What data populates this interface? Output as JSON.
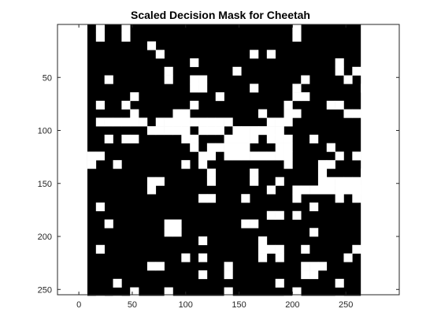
{
  "chart_data": {
    "type": "heatmap",
    "title": "Scaled Decision Mask for Cheetah",
    "xlabel": "",
    "ylabel": "",
    "xlim": [
      -20,
      300
    ],
    "ylim": [
      0,
      255
    ],
    "y_reversed": true,
    "xticks": [
      0,
      50,
      100,
      150,
      200,
      250
    ],
    "yticks": [
      50,
      100,
      150,
      200,
      250
    ],
    "grid": false,
    "colormap": [
      "#000000",
      "#ffffff"
    ],
    "cell_size": 8,
    "mask_col_range": [
      8,
      264
    ],
    "mask_row_range": [
      0,
      256
    ],
    "fill_outside": 1,
    "white_cells": [
      [
        0,
        1
      ],
      [
        0,
        4
      ],
      [
        0,
        24
      ],
      [
        1,
        1
      ],
      [
        1,
        4
      ],
      [
        1,
        24
      ],
      [
        2,
        7
      ],
      [
        3,
        8
      ],
      [
        3,
        19
      ],
      [
        3,
        21
      ],
      [
        3,
        34
      ],
      [
        4,
        12
      ],
      [
        4,
        29
      ],
      [
        4,
        36
      ],
      [
        5,
        9
      ],
      [
        5,
        17
      ],
      [
        5,
        29
      ],
      [
        5,
        31
      ],
      [
        5,
        35
      ],
      [
        6,
        2
      ],
      [
        6,
        9
      ],
      [
        6,
        12
      ],
      [
        6,
        13
      ],
      [
        6,
        25
      ],
      [
        6,
        30
      ],
      [
        7,
        12
      ],
      [
        7,
        13
      ],
      [
        7,
        19
      ],
      [
        7,
        24
      ],
      [
        7,
        32
      ],
      [
        7,
        33
      ],
      [
        8,
        5
      ],
      [
        8,
        15
      ],
      [
        8,
        24
      ],
      [
        8,
        25
      ],
      [
        8,
        33
      ],
      [
        9,
        1
      ],
      [
        9,
        4
      ],
      [
        9,
        12
      ],
      [
        9,
        23
      ],
      [
        9,
        28
      ],
      [
        9,
        29
      ],
      [
        10,
        5
      ],
      [
        10,
        10
      ],
      [
        10,
        11
      ],
      [
        10,
        20
      ],
      [
        10,
        23
      ],
      [
        10,
        24
      ],
      [
        10,
        30
      ],
      [
        10,
        31
      ],
      [
        10,
        32
      ],
      [
        11,
        1
      ],
      [
        11,
        2
      ],
      [
        11,
        3
      ],
      [
        11,
        4
      ],
      [
        11,
        5
      ],
      [
        11,
        6
      ],
      [
        11,
        8
      ],
      [
        11,
        9
      ],
      [
        11,
        10
      ],
      [
        11,
        11
      ],
      [
        11,
        12
      ],
      [
        11,
        13
      ],
      [
        11,
        14
      ],
      [
        11,
        15
      ],
      [
        11,
        16
      ],
      [
        11,
        21
      ],
      [
        11,
        22
      ],
      [
        11,
        23
      ],
      [
        12,
        7
      ],
      [
        12,
        8
      ],
      [
        12,
        9
      ],
      [
        12,
        10
      ],
      [
        12,
        11
      ],
      [
        12,
        13
      ],
      [
        12,
        14
      ],
      [
        12,
        15
      ],
      [
        12,
        17
      ],
      [
        12,
        18
      ],
      [
        12,
        19
      ],
      [
        12,
        20
      ],
      [
        12,
        21
      ],
      [
        12,
        22
      ],
      [
        13,
        2
      ],
      [
        13,
        4
      ],
      [
        13,
        5
      ],
      [
        13,
        11
      ],
      [
        13,
        12
      ],
      [
        13,
        16
      ],
      [
        13,
        17
      ],
      [
        13,
        18
      ],
      [
        13,
        19
      ],
      [
        13,
        21
      ],
      [
        13,
        22
      ],
      [
        13,
        23
      ],
      [
        13,
        26
      ],
      [
        14,
        12
      ],
      [
        14,
        14
      ],
      [
        14,
        15
      ],
      [
        14,
        16
      ],
      [
        14,
        17
      ],
      [
        14,
        18
      ],
      [
        14,
        22
      ],
      [
        14,
        23
      ],
      [
        14,
        28
      ],
      [
        15,
        0
      ],
      [
        15,
        1
      ],
      [
        15,
        13
      ],
      [
        15,
        14
      ],
      [
        15,
        16
      ],
      [
        15,
        17
      ],
      [
        15,
        18
      ],
      [
        15,
        19
      ],
      [
        15,
        20
      ],
      [
        15,
        21
      ],
      [
        15,
        22
      ],
      [
        15,
        23
      ],
      [
        15,
        29
      ],
      [
        15,
        31
      ],
      [
        16,
        0
      ],
      [
        16,
        3
      ],
      [
        16,
        11
      ],
      [
        16,
        13
      ],
      [
        16,
        23
      ],
      [
        16,
        27
      ],
      [
        16,
        28
      ],
      [
        17,
        14
      ],
      [
        17,
        19
      ],
      [
        17,
        27
      ],
      [
        17,
        32
      ],
      [
        17,
        33
      ],
      [
        18,
        7
      ],
      [
        18,
        8
      ],
      [
        18,
        14
      ],
      [
        18,
        19
      ],
      [
        18,
        22
      ],
      [
        18,
        27
      ],
      [
        18,
        28
      ],
      [
        18,
        29
      ],
      [
        18,
        30
      ],
      [
        18,
        31
      ],
      [
        18,
        33
      ],
      [
        19,
        7
      ],
      [
        19,
        21
      ],
      [
        19,
        24
      ],
      [
        19,
        25
      ],
      [
        19,
        26
      ],
      [
        19,
        27
      ],
      [
        19,
        28
      ],
      [
        19,
        29
      ],
      [
        19,
        30
      ],
      [
        19,
        31
      ],
      [
        19,
        32
      ],
      [
        20,
        13
      ],
      [
        20,
        14
      ],
      [
        20,
        18
      ],
      [
        20,
        24
      ],
      [
        20,
        29
      ],
      [
        20,
        31
      ],
      [
        20,
        33
      ],
      [
        21,
        1
      ],
      [
        21,
        26
      ],
      [
        22,
        21
      ],
      [
        22,
        22
      ],
      [
        22,
        24
      ],
      [
        23,
        2
      ],
      [
        23,
        9
      ],
      [
        23,
        10
      ],
      [
        23,
        18
      ],
      [
        23,
        19
      ],
      [
        24,
        9
      ],
      [
        24,
        10
      ],
      [
        24,
        26
      ],
      [
        25,
        13
      ],
      [
        25,
        20
      ],
      [
        25,
        34
      ],
      [
        26,
        1
      ],
      [
        26,
        20
      ],
      [
        26,
        21
      ],
      [
        26,
        22
      ],
      [
        26,
        25
      ],
      [
        26,
        31
      ],
      [
        27,
        11
      ],
      [
        27,
        13
      ],
      [
        27,
        20
      ],
      [
        27,
        22
      ],
      [
        27,
        30
      ],
      [
        27,
        34
      ],
      [
        28,
        7
      ],
      [
        28,
        8
      ],
      [
        28,
        16
      ],
      [
        28,
        25
      ],
      [
        28,
        26
      ],
      [
        28,
        27
      ],
      [
        28,
        35
      ],
      [
        29,
        13
      ],
      [
        29,
        16
      ],
      [
        29,
        25
      ],
      [
        29,
        26
      ],
      [
        29,
        35
      ],
      [
        30,
        3
      ],
      [
        30,
        22
      ],
      [
        30,
        29
      ],
      [
        30,
        33
      ],
      [
        31,
        5
      ],
      [
        31,
        9
      ],
      [
        31,
        16
      ],
      [
        31,
        24
      ],
      [
        32,
        1
      ],
      [
        32,
        3
      ],
      [
        32,
        23
      ],
      [
        32,
        29
      ]
    ]
  }
}
